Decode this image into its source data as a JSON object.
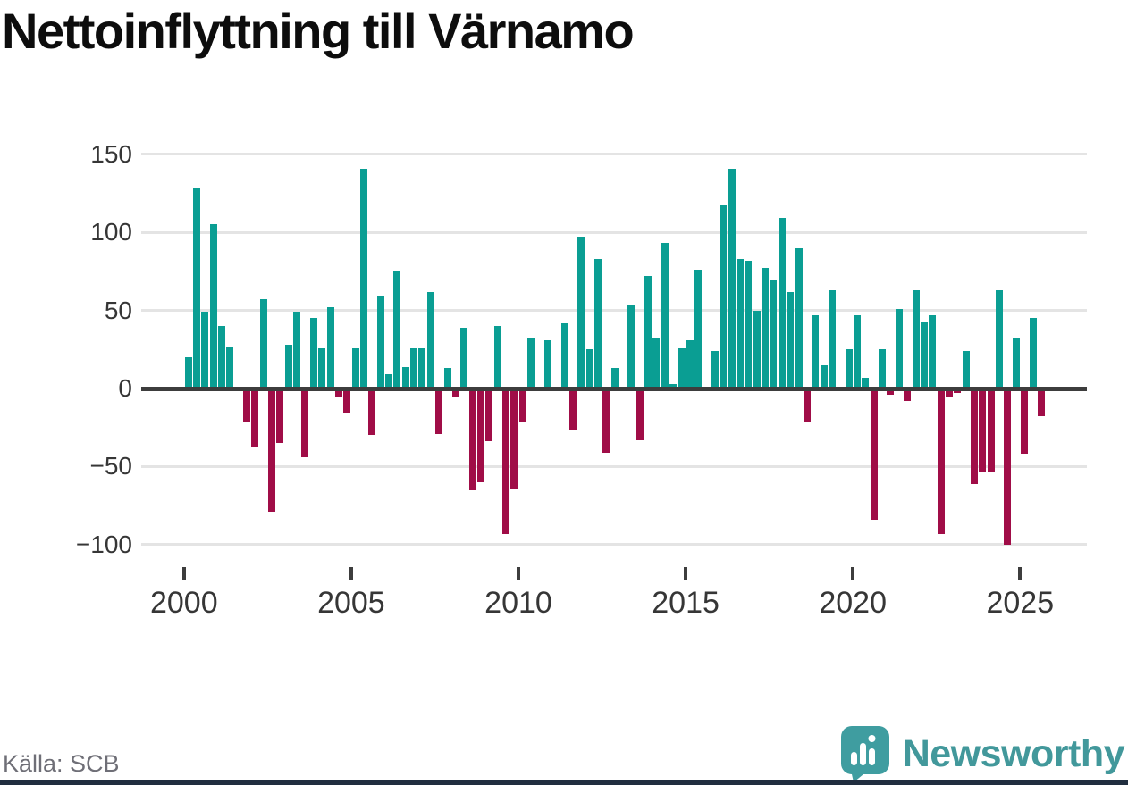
{
  "title": "Nettoinflyttning till Värnamo",
  "source": "Källa: SCB",
  "brand": {
    "name": "Newsworthy"
  },
  "colors": {
    "positive": "#0a9e93",
    "negative": "#a00d47",
    "grid": "#e4e4e4",
    "zero_line": "#3d3d3d",
    "axis_text": "#363636",
    "title_text": "#0d0d0d",
    "source_text": "#6f6f77",
    "brand_teal": "#42989b",
    "footer_bar": "#212e3f"
  },
  "chart_data": {
    "type": "bar",
    "title": "Nettoinflyttning till Värnamo",
    "xlabel": "",
    "ylabel": "",
    "frequency": "quarterly",
    "start_period": "2000-Q1",
    "end_period": "2025-Q3",
    "values": [
      20,
      128,
      49,
      105,
      40,
      27,
      0,
      -21,
      -38,
      57,
      -79,
      -35,
      28,
      49,
      -44,
      45,
      26,
      52,
      -6,
      -16,
      26,
      141,
      -30,
      59,
      9,
      75,
      14,
      26,
      26,
      62,
      -29,
      13,
      -5,
      39,
      -65,
      -60,
      -34,
      40,
      -93,
      -64,
      -21,
      32,
      0,
      31,
      0,
      42,
      -27,
      97,
      25,
      83,
      -41,
      13,
      0,
      53,
      -33,
      72,
      32,
      93,
      3,
      26,
      31,
      76,
      0,
      24,
      118,
      141,
      83,
      82,
      50,
      77,
      69,
      109,
      62,
      90,
      -22,
      47,
      15,
      63,
      0,
      25,
      47,
      7,
      -84,
      25,
      -4,
      51,
      -8,
      63,
      43,
      47,
      -93,
      -5,
      -3,
      24,
      -61,
      -53,
      -53,
      63,
      -100,
      32,
      -42,
      45,
      -18
    ],
    "xticks": [
      "2000",
      "2005",
      "2010",
      "2015",
      "2020",
      "2025"
    ],
    "yticks": [
      150,
      100,
      50,
      0,
      -50,
      -100
    ],
    "ytick_labels": [
      "150",
      "100",
      "50",
      "0",
      "−50",
      "−100"
    ],
    "ylim": [
      -100,
      150
    ],
    "grid": true,
    "legend": false,
    "series_note": "teal bars = positive net migration, burgundy bars = negative"
  }
}
